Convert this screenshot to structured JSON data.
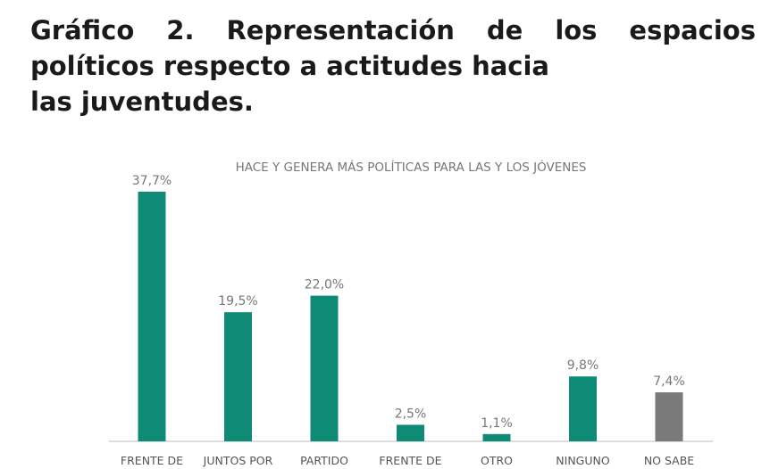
{
  "figure": {
    "title_line1_words": [
      "Gráfico",
      "2.",
      "Representación",
      "de",
      "los",
      "espacios"
    ],
    "title_line2": "políticos respecto a actitudes hacia",
    "title_line3": "las juventudes."
  },
  "chart_data": {
    "type": "bar",
    "title": "HACE Y GENERA MÁS POLÍTICAS PARA LAS Y LOS JÓVENES",
    "categories": [
      "FRENTE DE",
      "JUNTOS POR",
      "PARTIDO",
      "FRENTE DE",
      "OTRO",
      "NINGUNO",
      "NO SABE"
    ],
    "values": [
      37.7,
      19.5,
      22.0,
      2.5,
      1.1,
      9.8,
      7.4
    ],
    "value_labels": [
      "37,7%",
      "19,5%",
      "22,0%",
      "2,5%",
      "1,1%",
      "9,8%",
      "7,4%"
    ],
    "bar_colors": [
      "#0e8a76",
      "#0e8a76",
      "#0e8a76",
      "#0e8a76",
      "#0e8a76",
      "#0e8a76",
      "#7a7a7a"
    ],
    "xlabel": "",
    "ylabel": "",
    "ylim": [
      0,
      40
    ],
    "grid": false,
    "legend": "none"
  },
  "colors": {
    "axis": "#d3d3d3",
    "label_text": "#777777",
    "category_text": "#555555"
  }
}
